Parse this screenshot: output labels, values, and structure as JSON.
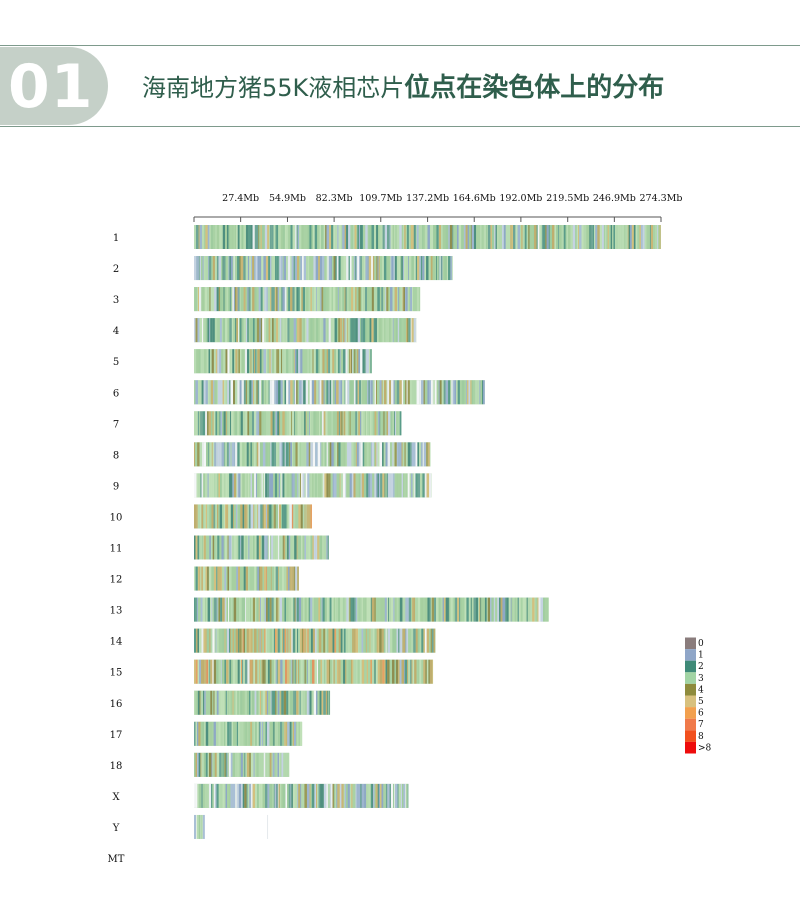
{
  "header": {
    "badge": "01",
    "title_regular": "海南地方猪55K液相芯片",
    "title_bold": "位点在染色体上的分布"
  },
  "chart_data": {
    "type": "heatmap",
    "x_tick_labels": [
      "27.4Mb",
      "54.9Mb",
      "82.3Mb",
      "109.7Mb",
      "137.2Mb",
      "164.6Mb",
      "192.0Mb",
      "219.5Mb",
      "246.9Mb",
      "274.3Mb"
    ],
    "x_ticks_mb": [
      27.4,
      54.9,
      82.3,
      109.7,
      137.2,
      164.6,
      192.0,
      219.5,
      246.9,
      274.3
    ],
    "xlim_mb": [
      0,
      274.3
    ],
    "chromosomes": [
      {
        "name": "1",
        "length_mb": 274.3
      },
      {
        "name": "2",
        "length_mb": 151.9
      },
      {
        "name": "3",
        "length_mb": 132.8
      },
      {
        "name": "4",
        "length_mb": 130.9
      },
      {
        "name": "5",
        "length_mb": 104.5
      },
      {
        "name": "6",
        "length_mb": 170.8
      },
      {
        "name": "7",
        "length_mb": 121.8
      },
      {
        "name": "8",
        "length_mb": 138.9
      },
      {
        "name": "9",
        "length_mb": 139.5
      },
      {
        "name": "10",
        "length_mb": 69.3
      },
      {
        "name": "11",
        "length_mb": 79.2
      },
      {
        "name": "12",
        "length_mb": 61.6
      },
      {
        "name": "13",
        "length_mb": 208.3
      },
      {
        "name": "14",
        "length_mb": 141.8
      },
      {
        "name": "15",
        "length_mb": 140.4
      },
      {
        "name": "16",
        "length_mb": 79.9
      },
      {
        "name": "17",
        "length_mb": 63.5
      },
      {
        "name": "18",
        "length_mb": 55.9
      },
      {
        "name": "X",
        "length_mb": 125.9
      },
      {
        "name": "Y",
        "length_mb": 43.5,
        "sparse": true
      },
      {
        "name": "MT",
        "length_mb": 0
      }
    ],
    "legend": {
      "placement": "right",
      "entries": [
        {
          "label": "0",
          "color": "#8a7c7c"
        },
        {
          "label": "1",
          "color": "#8fa6c8"
        },
        {
          "label": "2",
          "color": "#3f8a78"
        },
        {
          "label": "3",
          "color": "#a2d4a4"
        },
        {
          "label": "4",
          "color": "#8e8b3c"
        },
        {
          "label": "5",
          "color": "#d8c17e"
        },
        {
          "label": "6",
          "color": "#f2a04e"
        },
        {
          "label": "7",
          "color": "#f07a4a"
        },
        {
          "label": "8",
          "color": "#f2501e"
        },
        {
          "label": ">8",
          "color": "#ee0c0c"
        }
      ]
    },
    "grid": false
  }
}
